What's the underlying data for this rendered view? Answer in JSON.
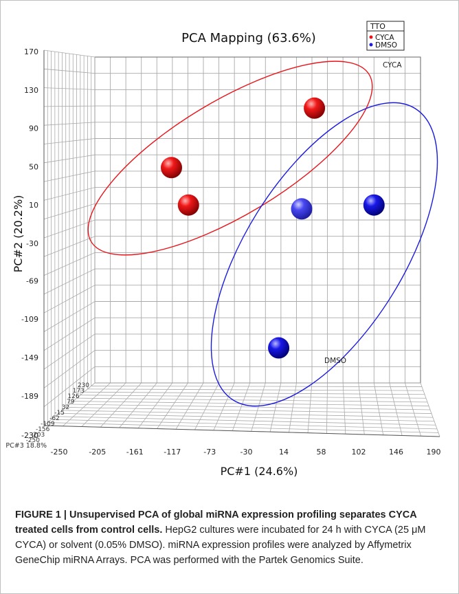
{
  "chart_data": {
    "type": "scatter",
    "title": "PCA Mapping (63.6%)",
    "xlabel": "PC#1 (24.6%)",
    "ylabel": "PC#2 (20.2%)",
    "zlabel": "PC#3 18.8%",
    "xlim": [
      -250,
      190
    ],
    "ylim": [
      -230,
      170
    ],
    "x_ticks": [
      "-250",
      "-205",
      "-161",
      "-117",
      "-73",
      "-30",
      "14",
      "58",
      "102",
      "146",
      "190"
    ],
    "y_ticks": [
      "170",
      "130",
      "90",
      "50",
      "10",
      "-30",
      "-69",
      "-109",
      "-149",
      "-189",
      "-230"
    ],
    "z_ticks": [
      "-250",
      "-203",
      "-156",
      "-109",
      "-62",
      "-15",
      "32",
      "79",
      "126",
      "173",
      "230"
    ],
    "grid": true,
    "legend": {
      "title": "TTO",
      "position": "top-right",
      "entries": [
        {
          "label": "CYCA",
          "color": "#e8141a"
        },
        {
          "label": "DMSO",
          "color": "#1a1ae0"
        }
      ]
    },
    "series": [
      {
        "name": "CYCA",
        "color": "#e8141a",
        "points": [
          {
            "x": -118,
            "y": 49
          },
          {
            "x": -98,
            "y": 10
          },
          {
            "x": 50,
            "y": 111
          }
        ],
        "ellipse_label": "CYCA"
      },
      {
        "name": "DMSO",
        "color": "#1a1ae0",
        "points": [
          {
            "x": 35,
            "y": 6
          },
          {
            "x": 120,
            "y": 10
          },
          {
            "x": 8,
            "y": -139
          }
        ],
        "ellipse_label": "DMSO"
      }
    ]
  },
  "caption": {
    "label": "FIGURE 1 | Unsupervised PCA of global miRNA expression profiling separates CYCA treated cells from control cells.",
    "text": "HepG2 cultures were incubated for 24 h with CYCA (25 μM CYCA) or solvent (0.05% DMSO). miRNA expression profiles were analyzed by Affymetrix GeneChip miRNA Arrays. PCA was performed with the Partek Genomics Suite."
  }
}
